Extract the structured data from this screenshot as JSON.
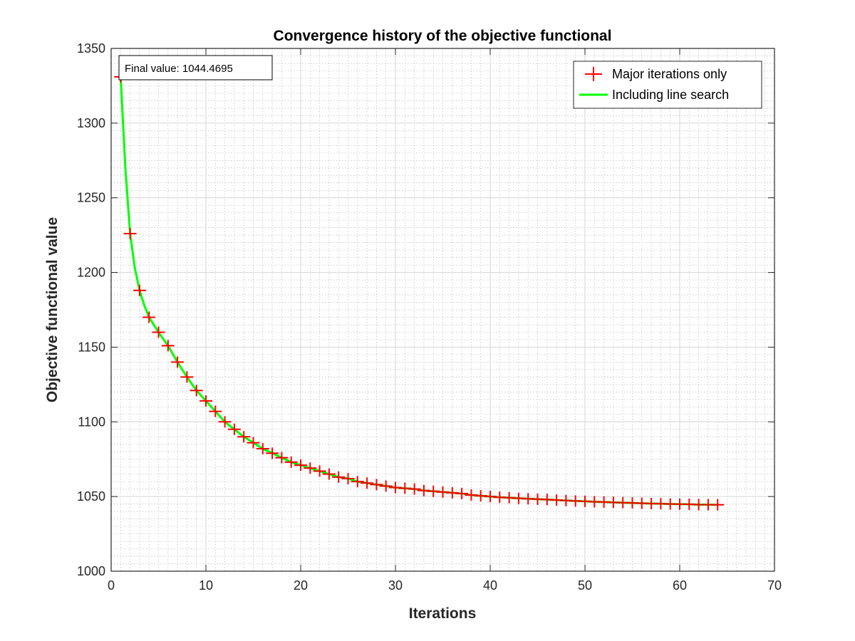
{
  "chart_data": {
    "type": "line",
    "title": "Convergence history of the objective functional",
    "xlabel": "Iterations",
    "ylabel": "Objective functional value",
    "xlim": [
      0,
      70
    ],
    "ylim": [
      1000,
      1350
    ],
    "xticks": [
      0,
      10,
      20,
      30,
      40,
      50,
      60,
      70
    ],
    "yticks": [
      1000,
      1050,
      1100,
      1150,
      1200,
      1250,
      1300,
      1350
    ],
    "grid": true,
    "minor_grid": true,
    "legend_position": "top-right",
    "annotation": "Final value: 1044.4695",
    "series": [
      {
        "name": "Major iterations only",
        "style": "marker",
        "marker": "+",
        "color": "#ff0000",
        "x": [
          1,
          2,
          3,
          4,
          5,
          6,
          7,
          8,
          9,
          10,
          11,
          12,
          13,
          14,
          15,
          16,
          17,
          18,
          19,
          20,
          21,
          22,
          23,
          24,
          25,
          26,
          27,
          28,
          29,
          30,
          31,
          32,
          33,
          34,
          35,
          36,
          37,
          38,
          39,
          40,
          41,
          42,
          43,
          44,
          45,
          46,
          47,
          48,
          49,
          50,
          51,
          52,
          53,
          54,
          55,
          56,
          57,
          58,
          59,
          60,
          61,
          62,
          63,
          64
        ],
        "y": [
          1331,
          1226,
          1188,
          1170,
          1160,
          1151,
          1140,
          1130,
          1121,
          1114,
          1107,
          1100,
          1095,
          1090,
          1086,
          1082,
          1079,
          1076,
          1073,
          1071,
          1069,
          1067,
          1065,
          1063,
          1062,
          1060,
          1059,
          1058,
          1057,
          1056,
          1055.5,
          1055,
          1054,
          1053.5,
          1053,
          1052.5,
          1052,
          1051,
          1050.5,
          1050,
          1049.5,
          1049.2,
          1048.8,
          1048.5,
          1048.2,
          1048,
          1047.6,
          1047.3,
          1047,
          1046.8,
          1046.5,
          1046.3,
          1046.1,
          1045.9,
          1045.7,
          1045.5,
          1045.3,
          1045.2,
          1045,
          1044.9,
          1044.8,
          1044.6,
          1044.5,
          1044.4695
        ]
      },
      {
        "name": "Including line search",
        "style": "line",
        "color": "#00ff00",
        "x": [
          1,
          1.5,
          2,
          2.5,
          3,
          3.5,
          4,
          5,
          6,
          7,
          8,
          9,
          10,
          11,
          12,
          13,
          14,
          15,
          16,
          17,
          18,
          19,
          20,
          21,
          22,
          23,
          24,
          25,
          26,
          27,
          28,
          29,
          30,
          31,
          32,
          33,
          34,
          35,
          36,
          37,
          38,
          39,
          40,
          41,
          42,
          43,
          44,
          45,
          46,
          47,
          48,
          49,
          50,
          51,
          52,
          53,
          54,
          55,
          56,
          57,
          58,
          59,
          60,
          61,
          62,
          63,
          64
        ],
        "y": [
          1331,
          1270,
          1226,
          1203,
          1188,
          1178,
          1170,
          1160,
          1151,
          1140,
          1130,
          1121,
          1114,
          1107,
          1100,
          1095,
          1090,
          1086,
          1082,
          1079,
          1076,
          1073,
          1071,
          1069,
          1067,
          1065,
          1063,
          1062,
          1060,
          1059,
          1058,
          1057,
          1056,
          1055.5,
          1055,
          1054,
          1053.5,
          1053,
          1052.5,
          1052,
          1051,
          1050.5,
          1050,
          1049.5,
          1049.2,
          1048.8,
          1048.5,
          1048.2,
          1048,
          1047.6,
          1047.3,
          1047,
          1046.8,
          1046.5,
          1046.3,
          1046.1,
          1045.9,
          1045.7,
          1045.5,
          1045.3,
          1045.2,
          1045,
          1044.9,
          1044.8,
          1044.6,
          1044.5,
          1044.4695
        ]
      }
    ]
  }
}
